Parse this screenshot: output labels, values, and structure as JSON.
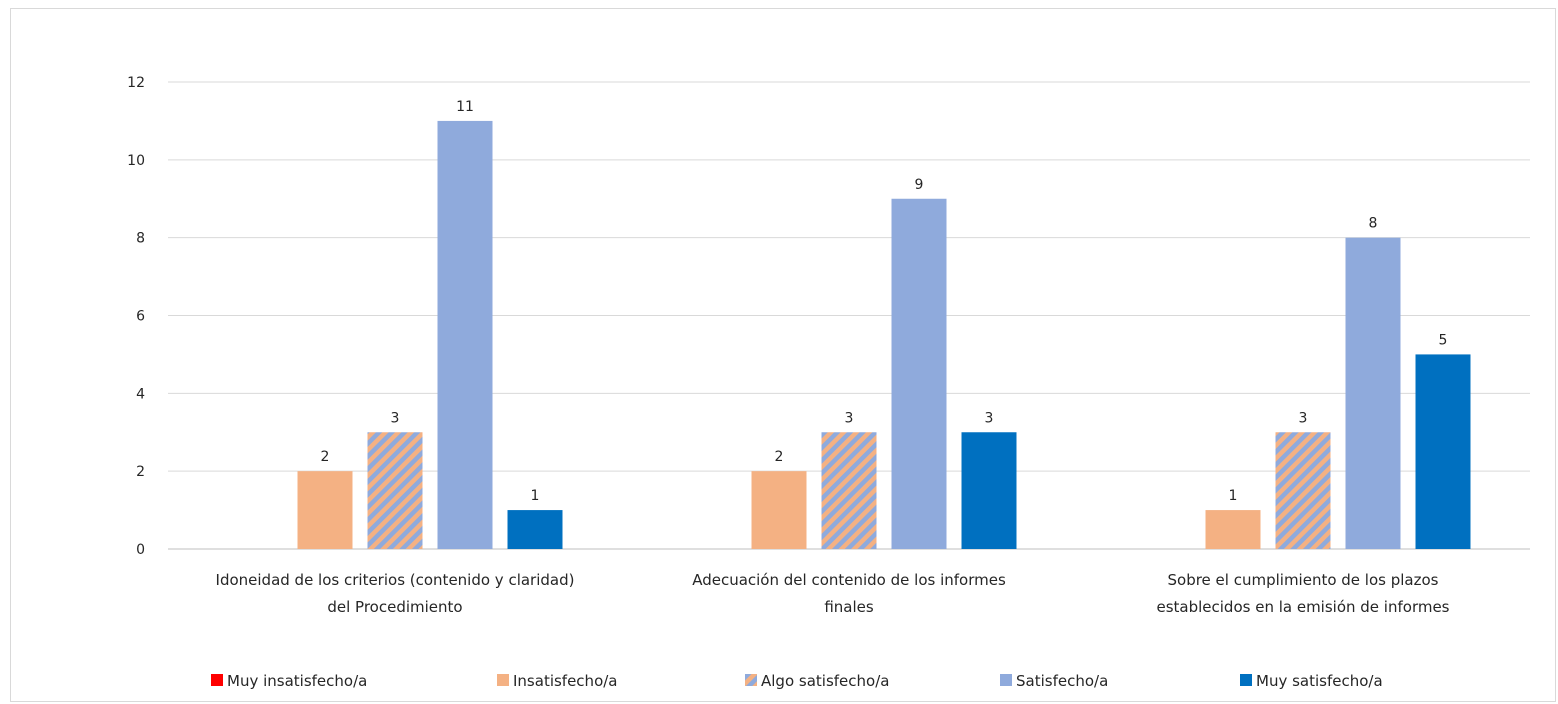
{
  "chart_data": {
    "type": "bar",
    "categories": [
      [
        "Idoneidad de los criterios (contenido y claridad)",
        "del Procedimiento"
      ],
      [
        "Adecuación del contenido de los informes",
        "finales"
      ],
      [
        "Sobre el cumplimiento de los plazos",
        "establecidos en la emisión de informes"
      ]
    ],
    "series": [
      {
        "name": "Muy insatisfecho/a",
        "values": [
          0,
          0,
          0
        ],
        "color": "#ff0000",
        "pattern": "solid"
      },
      {
        "name": "Insatisfecho/a",
        "values": [
          2,
          2,
          1
        ],
        "color": "#f4b183",
        "pattern": "solid"
      },
      {
        "name": "Algo satisfecho/a",
        "values": [
          3,
          3,
          3
        ],
        "color": "#8faadc",
        "stripe_color": "#f4b183",
        "pattern": "diagonal-stripes"
      },
      {
        "name": "Satisfecho/a",
        "values": [
          11,
          9,
          8
        ],
        "color": "#8faadc",
        "pattern": "solid"
      },
      {
        "name": "Muy satisfecho/a",
        "values": [
          1,
          3,
          5
        ],
        "color": "#0070c0",
        "pattern": "solid"
      }
    ],
    "yticks": [
      0,
      2,
      4,
      6,
      8,
      10,
      12
    ],
    "ylim": [
      0,
      12
    ],
    "grid": true,
    "legend_position": "bottom",
    "title": "",
    "xlabel": "",
    "ylabel": ""
  }
}
